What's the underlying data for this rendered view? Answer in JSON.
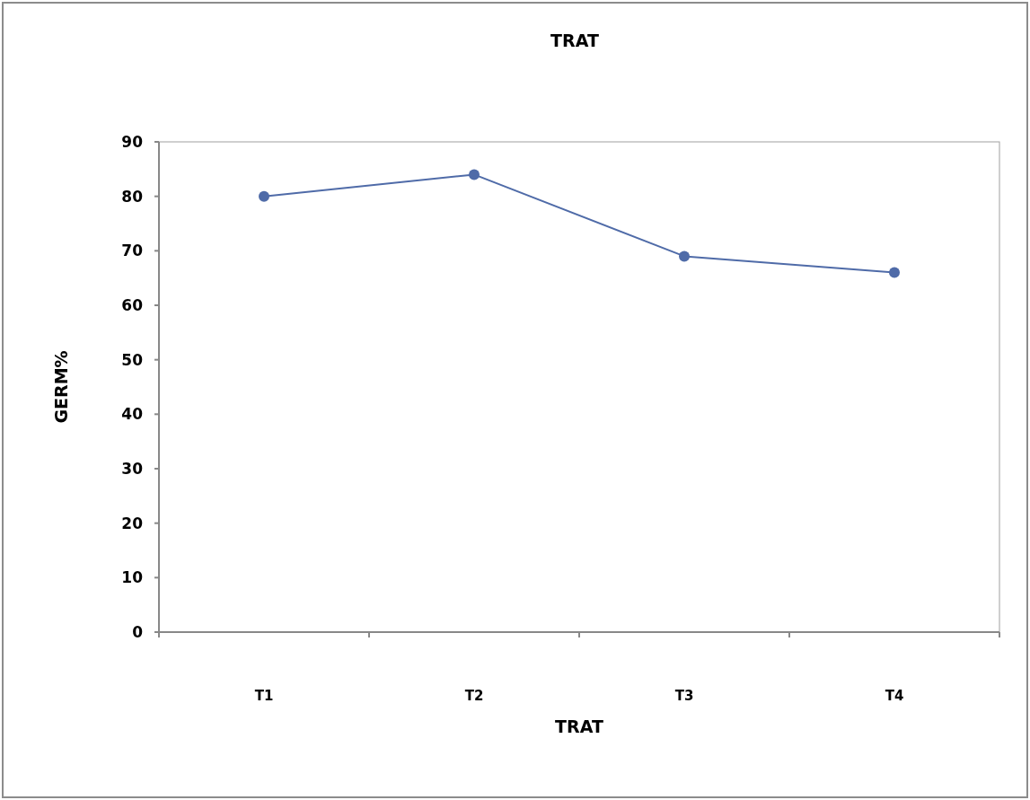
{
  "chart_data": {
    "type": "line",
    "title": "TRAT",
    "xlabel": "TRAT",
    "ylabel": "GERM%",
    "categories": [
      "T1",
      "T2",
      "T3",
      "T4"
    ],
    "series": [
      {
        "color": "#4f6ba8",
        "values": [
          80,
          84,
          69,
          66
        ]
      }
    ],
    "ylim": [
      0,
      90
    ],
    "yticks": [
      0,
      10,
      20,
      30,
      40,
      50,
      60,
      70,
      80,
      90
    ],
    "grid": false,
    "marker": "circle",
    "line_style": "solid"
  }
}
